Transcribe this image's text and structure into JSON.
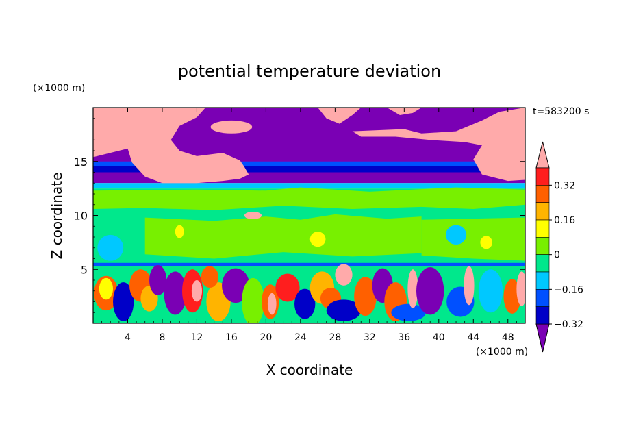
{
  "chart_data": {
    "type": "heatmap",
    "title": "potential temperature deviation",
    "xlabel": "X coordinate",
    "ylabel": "Z coordinate",
    "x_unit": "(×1000 m)",
    "y_unit": "(×1000 m)",
    "time_label": "t=583200 s",
    "xlim": [
      0,
      50
    ],
    "ylim": [
      0,
      20
    ],
    "x_ticks": [
      "4",
      "8",
      "12",
      "16",
      "20",
      "24",
      "28",
      "32",
      "36",
      "40",
      "44",
      "48"
    ],
    "y_ticks": [
      "5",
      "10",
      "15"
    ],
    "colorbar": {
      "labels": [
        "0.32",
        "0.16",
        "0",
        "-0.16",
        "-0.32"
      ],
      "levels": [
        -0.4,
        -0.32,
        -0.24,
        -0.16,
        -0.08,
        0,
        0.08,
        0.16,
        0.24,
        0.32,
        0.4
      ],
      "colors": [
        "#7a00b4",
        "#0000c8",
        "#0050ff",
        "#00c8ff",
        "#00e88c",
        "#78f000",
        "#ffff00",
        "#ffb400",
        "#ff6000",
        "#ff1e1e",
        "#ffaaaa"
      ],
      "extend": "both"
    },
    "colors": {
      "stratosphere": "#7a00b4",
      "pink": "#ffaaaa",
      "mid_green": "#78f000",
      "light_green": "#00e88c",
      "cyan": "#00c8ff"
    }
  }
}
